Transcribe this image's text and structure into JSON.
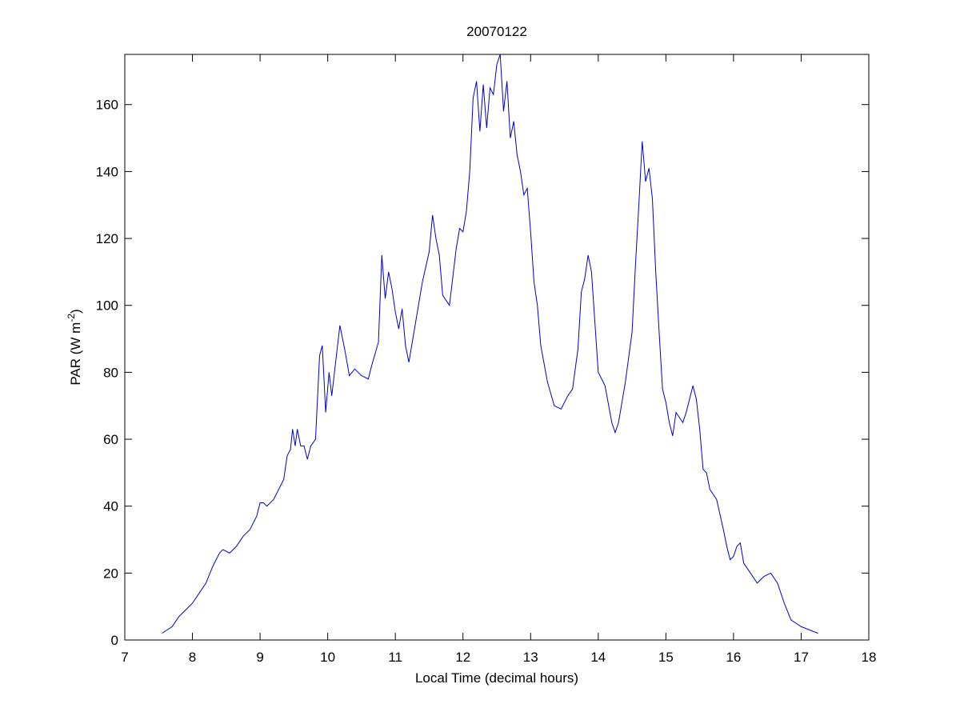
{
  "chart_data": {
    "type": "line",
    "title": "20070122",
    "xlabel": "Local Time (decimal hours)",
    "ylabel": {
      "text": "PAR (W m",
      "superscript": "-2",
      "suffix": ")"
    },
    "xlim": [
      7,
      18
    ],
    "xticks": [
      7,
      8,
      9,
      10,
      11,
      12,
      13,
      14,
      15,
      16,
      17,
      18
    ],
    "ylim": [
      0,
      175
    ],
    "yticks": [
      0,
      20,
      40,
      60,
      80,
      100,
      120,
      140,
      160
    ],
    "grid": false,
    "series": [
      {
        "color": "#0000cc",
        "x": [
          7.55,
          7.7,
          7.8,
          7.9,
          8.0,
          8.1,
          8.2,
          8.3,
          8.4,
          8.45,
          8.55,
          8.65,
          8.75,
          8.85,
          8.95,
          9.0,
          9.05,
          9.1,
          9.2,
          9.3,
          9.35,
          9.4,
          9.45,
          9.48,
          9.52,
          9.55,
          9.6,
          9.65,
          9.7,
          9.75,
          9.82,
          9.88,
          9.92,
          9.97,
          10.02,
          10.06,
          10.1,
          10.18,
          10.25,
          10.32,
          10.4,
          10.5,
          10.6,
          10.65,
          10.75,
          10.8,
          10.85,
          10.9,
          10.95,
          11.0,
          11.05,
          11.1,
          11.15,
          11.2,
          11.3,
          11.4,
          11.5,
          11.55,
          11.6,
          11.65,
          11.7,
          11.8,
          11.9,
          11.95,
          12.0,
          12.05,
          12.1,
          12.15,
          12.2,
          12.25,
          12.3,
          12.35,
          12.4,
          12.45,
          12.5,
          12.55,
          12.6,
          12.65,
          12.7,
          12.75,
          12.8,
          12.85,
          12.9,
          12.95,
          13.0,
          13.05,
          13.1,
          13.15,
          13.25,
          13.35,
          13.45,
          13.55,
          13.62,
          13.7,
          13.75,
          13.8,
          13.85,
          13.9,
          13.95,
          14.0,
          14.1,
          14.2,
          14.25,
          14.3,
          14.4,
          14.5,
          14.55,
          14.6,
          14.65,
          14.7,
          14.75,
          14.8,
          14.85,
          14.9,
          14.95,
          15.0,
          15.05,
          15.1,
          15.15,
          15.25,
          15.3,
          15.4,
          15.45,
          15.5,
          15.55,
          15.6,
          15.65,
          15.75,
          15.85,
          15.9,
          15.95,
          16.0,
          16.05,
          16.1,
          16.15,
          16.25,
          16.35,
          16.45,
          16.55,
          16.65,
          16.75,
          16.85,
          17.0,
          17.25
        ],
        "values": [
          2,
          4,
          7,
          9,
          11,
          14,
          17,
          22,
          26,
          27,
          26,
          28,
          31,
          33,
          37,
          41,
          41,
          40,
          42,
          46,
          48,
          55,
          57,
          63,
          58,
          63,
          58,
          58,
          54,
          58,
          60,
          85,
          88,
          68,
          80,
          73,
          80,
          94,
          87,
          79,
          81,
          79,
          78,
          82,
          89,
          115,
          102,
          110,
          105,
          98,
          93,
          99,
          88,
          83,
          95,
          107,
          116,
          127,
          120,
          115,
          103,
          100,
          117,
          123,
          122,
          128,
          140,
          162,
          167,
          152,
          166,
          153,
          165,
          163,
          172,
          175,
          158,
          167,
          150,
          155,
          145,
          140,
          133,
          135,
          122,
          107,
          100,
          88,
          77,
          70,
          69,
          73,
          75,
          87,
          104,
          108,
          115,
          110,
          95,
          80,
          76,
          65,
          62,
          65,
          77,
          92,
          112,
          130,
          149,
          137,
          141,
          132,
          110,
          92,
          75,
          71,
          65,
          61,
          68,
          65,
          68,
          76,
          72,
          63,
          51,
          50,
          45,
          42,
          33,
          28,
          24,
          25,
          28,
          29,
          23,
          20,
          17,
          19,
          20,
          17,
          11,
          6,
          4,
          2
        ]
      }
    ]
  }
}
